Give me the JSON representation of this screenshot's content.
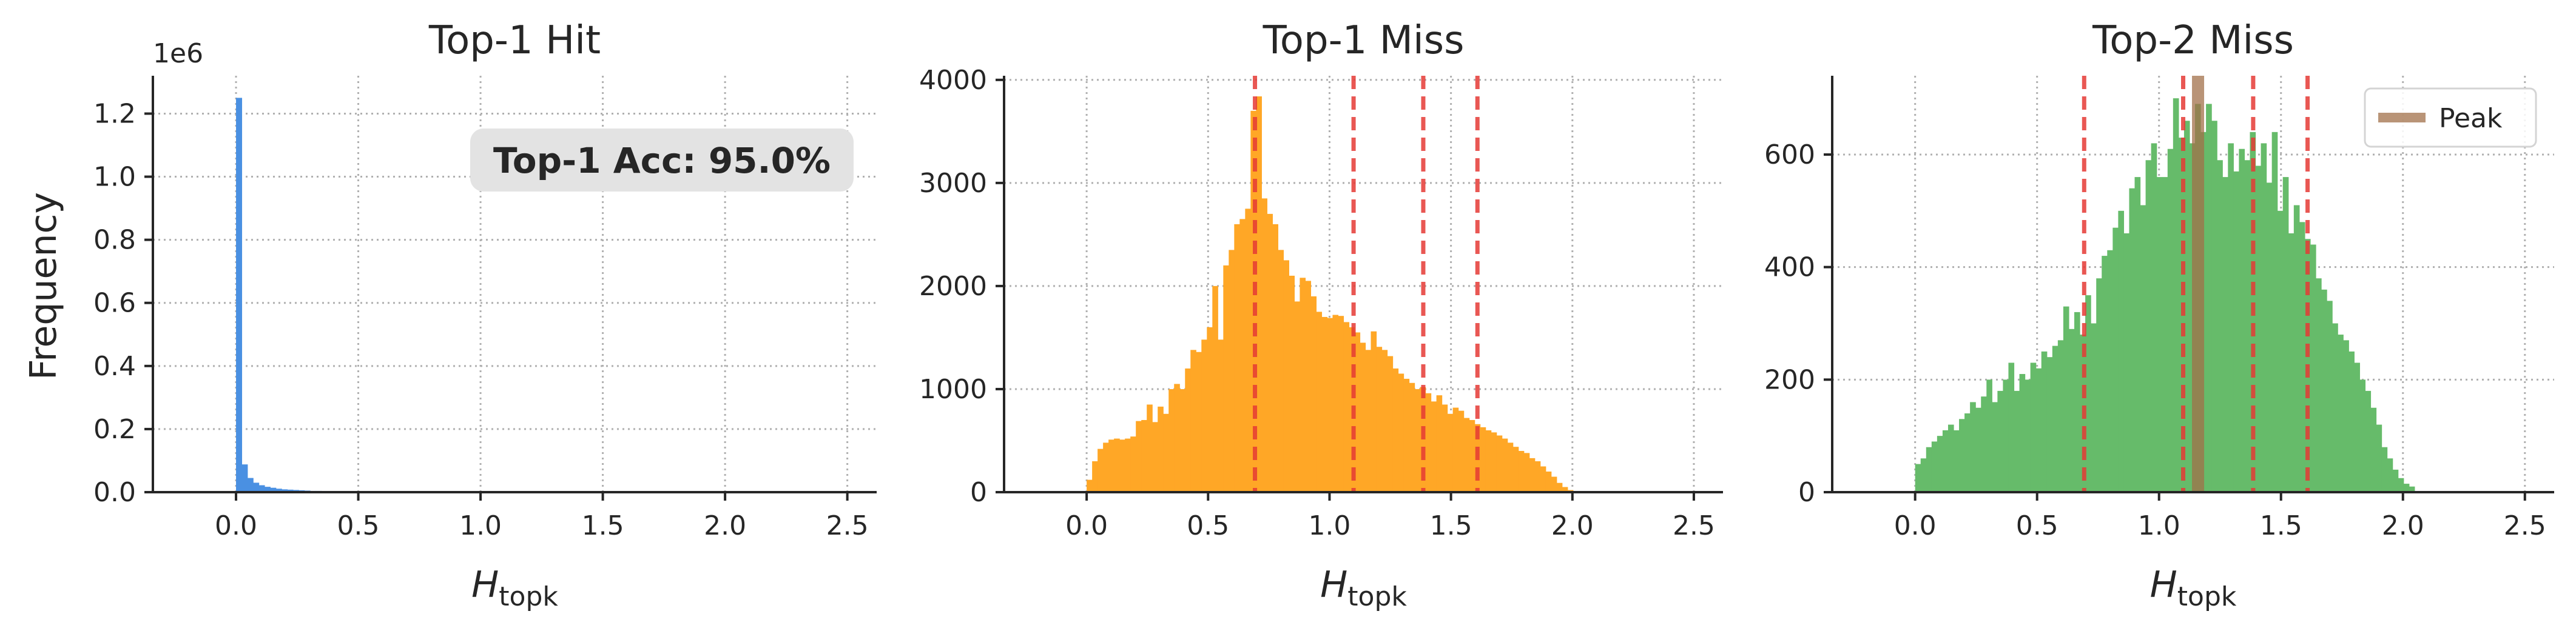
{
  "figure": {
    "ylabel": "Frequency",
    "xlabel_main": "H",
    "xlabel_sub": "topk"
  },
  "chart_data": [
    {
      "type": "bar",
      "title": "Top-1 Hit",
      "color": "#4a90e2",
      "xlim": [
        -0.34,
        2.62
      ],
      "ylim": [
        0,
        1.32
      ],
      "y_scale_label": "1e6",
      "xticks": [
        "0.0",
        "0.5",
        "1.0",
        "1.5",
        "2.0",
        "2.5"
      ],
      "yticks": [
        "0.0",
        "0.2",
        "0.4",
        "0.6",
        "0.8",
        "1.0",
        "1.2"
      ],
      "bin_start": 0.0,
      "bin_width": 0.0233,
      "values": [
        1.25,
        0.088,
        0.045,
        0.03,
        0.022,
        0.017,
        0.014,
        0.011,
        0.009,
        0.008,
        0.007,
        0.006,
        0.005,
        0.004,
        0.004,
        0.003,
        0.003,
        0.002,
        0.002,
        0.002,
        0.0015,
        0.0012,
        0.001,
        0.001,
        0.0008,
        0.0007,
        0.0006,
        0.0005
      ],
      "annotation": "Top-1 Acc: 95.0%",
      "grid": true
    },
    {
      "type": "bar",
      "title": "Top-1 Miss",
      "color": "#ffa726",
      "xlim": [
        -0.34,
        2.62
      ],
      "ylim": [
        0,
        4040
      ],
      "xticks": [
        "0.0",
        "0.5",
        "1.0",
        "1.5",
        "2.0",
        "2.5"
      ],
      "yticks": [
        "0",
        "1000",
        "2000",
        "3000",
        "4000"
      ],
      "bin_start": 0.0,
      "bin_width": 0.0225,
      "values": [
        120,
        300,
        420,
        480,
        510,
        520,
        510,
        520,
        540,
        690,
        700,
        850,
        680,
        830,
        760,
        1000,
        1050,
        1000,
        1200,
        1380,
        1360,
        1480,
        1600,
        2000,
        1480,
        2200,
        2350,
        2600,
        2650,
        2750,
        3700,
        3840,
        2850,
        2700,
        2600,
        2350,
        2250,
        2100,
        1850,
        2080,
        2050,
        1900,
        1750,
        1700,
        1690,
        1720,
        1710,
        1650,
        1600,
        1550,
        1450,
        1380,
        1560,
        1410,
        1380,
        1320,
        1200,
        1150,
        1100,
        1060,
        1000,
        1020,
        960,
        880,
        940,
        850,
        760,
        820,
        790,
        720,
        700,
        660,
        630,
        600,
        580,
        550,
        520,
        480,
        440,
        400,
        380,
        330,
        300,
        250,
        200,
        150,
        90,
        50,
        20,
        10,
        5
      ],
      "vlines": [
        0.693,
        1.099,
        1.386,
        1.609
      ],
      "vline_color": "#e53935",
      "grid": true
    },
    {
      "type": "bar",
      "title": "Top-2 Miss",
      "color": "#66bb6a",
      "xlim": [
        -0.34,
        2.62
      ],
      "ylim": [
        0,
        740
      ],
      "xticks": [
        "0.0",
        "0.5",
        "1.0",
        "1.5",
        "2.0",
        "2.5"
      ],
      "yticks": [
        "0",
        "200",
        "400",
        "600"
      ],
      "bin_start": 0.0,
      "bin_width": 0.0225,
      "values": [
        50,
        60,
        80,
        90,
        100,
        110,
        120,
        110,
        130,
        140,
        160,
        150,
        170,
        200,
        160,
        180,
        200,
        230,
        180,
        210,
        200,
        230,
        220,
        250,
        240,
        260,
        270,
        330,
        290,
        320,
        280,
        350,
        300,
        380,
        420,
        430,
        470,
        500,
        460,
        540,
        560,
        510,
        590,
        620,
        560,
        560,
        610,
        700,
        630,
        660,
        620,
        690,
        640,
        690,
        660,
        590,
        560,
        620,
        570,
        610,
        590,
        640,
        580,
        620,
        550,
        640,
        500,
        560,
        460,
        510,
        480,
        450,
        440,
        380,
        360,
        340,
        300,
        280,
        270,
        250,
        230,
        200,
        180,
        150,
        120,
        80,
        60,
        40,
        25,
        15,
        10
      ],
      "vlines": [
        0.693,
        1.099,
        1.386,
        1.609
      ],
      "vline_color": "#e53935",
      "peak": 1.16,
      "peak_color": "#a1704a",
      "legend": {
        "label": "Peak",
        "position": "upper right"
      },
      "grid": true
    }
  ]
}
